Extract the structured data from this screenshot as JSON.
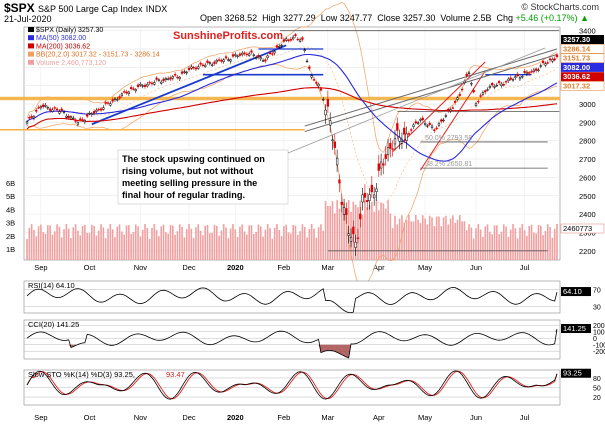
{
  "header": {
    "ticker": "$SPX",
    "name": "S&P 500 Large Cap Index",
    "exchange": "INDX",
    "date": "21-Jul-2020",
    "open_label": "Open",
    "open": "3268.52",
    "high_label": "High",
    "high": "3277.29",
    "low_label": "Low",
    "low": "3247.77",
    "close_label": "Close",
    "close": "3257.30",
    "volume_label": "Volume",
    "volume": "2.5B",
    "chg_label": "Chg",
    "chg": "+5.46 (+0.17%)",
    "chg_arrow": "▲",
    "credit": "© StockCharts.com"
  },
  "colors": {
    "up": "#000000",
    "down": "#e00000",
    "ma50": "#2a2ae0",
    "ma200": "#d00000",
    "bb": "#f0a060",
    "volume": "#f0a0a0",
    "support": "#f5b040",
    "trend": "#1a3acc"
  },
  "chart_data": [
    {
      "type": "candlestick",
      "panel": "price",
      "title": "$SPX S&P 500 Large Cap Index INDX",
      "x_months": [
        "Sep",
        "Oct",
        "Nov",
        "Dec",
        "2020",
        "Feb",
        "Mar",
        "Apr",
        "May",
        "Jun",
        "Jul"
      ],
      "y_ticks": [
        2200,
        2300,
        2400,
        2500,
        2600,
        2700,
        2800,
        2900,
        3000,
        3100,
        3200,
        3300,
        3400
      ],
      "ylim": [
        2150,
        3420
      ],
      "volume_ticks": [
        "1B",
        "2B",
        "3B",
        "4B",
        "5B",
        "6B"
      ],
      "legend": [
        {
          "label": "$SPX (Daily) 3257.30",
          "color": "#000000"
        },
        {
          "label": "MA(50) 3082.00",
          "color": "#2a2ae0"
        },
        {
          "label": "MA(200) 3036.62",
          "color": "#d00000"
        },
        {
          "label": "BB(20,2.0) 3017.32 - 3151.73 - 3286.14",
          "color": "#f0a060"
        },
        {
          "label": "Volume 2,460,773,120",
          "color": "#f0a0a0"
        }
      ],
      "value_tags": [
        {
          "value": 3257.3,
          "text": "3257.30",
          "bg": "#000000",
          "fg": "#ffffff"
        },
        {
          "value": 3286.14,
          "text": "3286.14",
          "bg": "#ffffff",
          "fg": "#e08030"
        },
        {
          "value": 3151.73,
          "text": "3151.73",
          "bg": "#ffffff",
          "fg": "#e08030"
        },
        {
          "value": 3082.0,
          "text": "3082.00",
          "bg": "#2a2ae0",
          "fg": "#ffffff"
        },
        {
          "value": 3036.62,
          "text": "3036.62",
          "bg": "#d00000",
          "fg": "#ffffff"
        },
        {
          "value": 3017.32,
          "text": "3017.32",
          "bg": "#ffffff",
          "fg": "#e08030"
        }
      ],
      "volume_tag": "2460773",
      "fib_levels": [
        {
          "text": "50.0% 2793.58",
          "value": 2793.58
        },
        {
          "text": "38.2% 2650.81",
          "value": 2650.81
        }
      ],
      "annotation": "The stock upswing continued on rising volume, but not without meeting selling pressure in the final hour of regular trading.",
      "watermark": "SunshineProfits.com"
    },
    {
      "type": "line",
      "panel": "rsi",
      "label": "RSI(14) 64.10",
      "series": [
        {
          "name": "RSI(14)",
          "last": 64.1
        }
      ],
      "y_ticks": [
        70,
        30
      ],
      "ylim": [
        15,
        90
      ],
      "value_tag": "64.10"
    },
    {
      "type": "line",
      "panel": "cci",
      "label": "CCI(20) 141.25",
      "series": [
        {
          "name": "CCI(20)",
          "last": 141.25
        }
      ],
      "y_ticks": [
        200,
        100,
        0,
        -100,
        -200
      ],
      "ylim": [
        -320,
        280
      ],
      "value_tag": "141.25"
    },
    {
      "type": "line",
      "panel": "sto",
      "label_k": "Slow STO %K(14) %D(3) 93.25,",
      "label_d": "93.47",
      "series": [
        {
          "name": "%K(14)",
          "last": 93.25
        },
        {
          "name": "%D(3)",
          "last": 93.47
        }
      ],
      "y_ticks": [
        80,
        50,
        20
      ],
      "ylim": [
        -5,
        105
      ],
      "value_tag": "93.25"
    }
  ]
}
